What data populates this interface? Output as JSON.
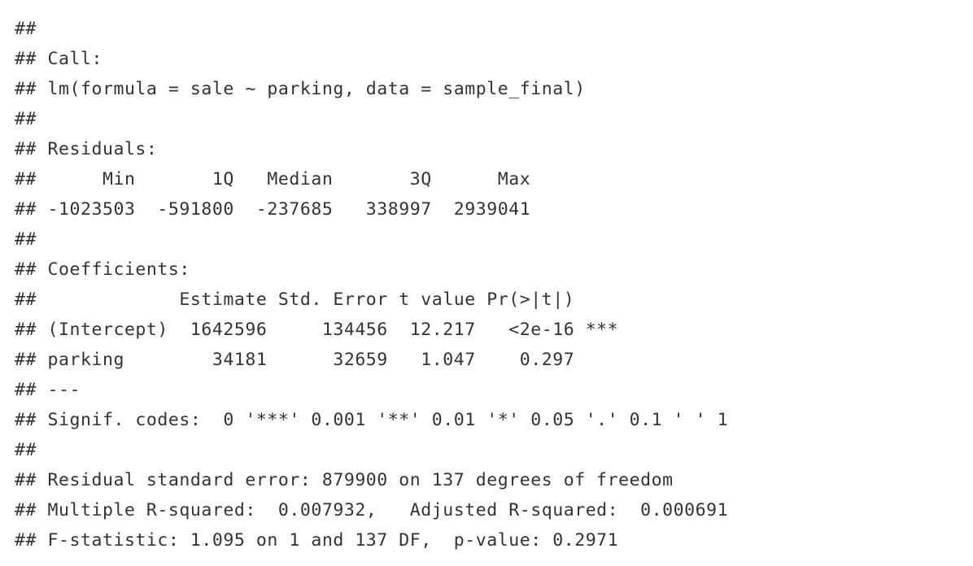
{
  "output": {
    "lines": [
      "##",
      "## Call:",
      "## lm(formula = sale ~ parking, data = sample_final)",
      "##",
      "## Residuals:",
      "##      Min       1Q   Median       3Q      Max",
      "## -1023503  -591800  -237685   338997  2939041",
      "##",
      "## Coefficients:",
      "##             Estimate Std. Error t value Pr(>|t|)",
      "## (Intercept)  1642596     134456  12.217   <2e-16 ***",
      "## parking        34181      32659   1.047    0.297",
      "## ---",
      "## Signif. codes:  0 '***' 0.001 '**' 0.01 '*' 0.05 '.' 0.1 ' ' 1",
      "##",
      "## Residual standard error: 879900 on 137 degrees of freedom",
      "## Multiple R-squared:  0.007932,\tAdjusted R-squared:  0.000691",
      "## F-statistic: 1.095 on 1 and 137 DF,  p-value: 0.2971"
    ]
  }
}
